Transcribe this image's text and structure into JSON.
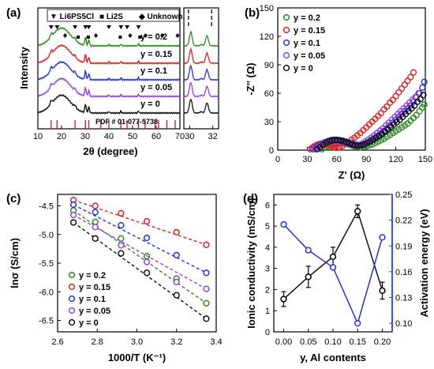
{
  "chart_data": [
    {
      "panel": "(a)",
      "type": "line",
      "xlabel": "2θ (degree)",
      "ylabel": "Intensity",
      "xticks_main": [
        "10",
        "20",
        "30",
        "40",
        "50",
        "60",
        "70"
      ],
      "xticks_inset": [
        "30",
        "32"
      ],
      "xlim": [
        10,
        70
      ],
      "xlim_inset": [
        29.5,
        32.5
      ],
      "legend": [
        "▼ Li6PS5Cl",
        "■ Li2S",
        "◆ Unknown"
      ],
      "pdf_label": "PDF # 01-077-5738",
      "series": [
        {
          "name": "y = 0.2",
          "color": "#2e8b1e"
        },
        {
          "name": "y = 0.15",
          "color": "#e32222"
        },
        {
          "name": "y = 0.1",
          "color": "#2233e6"
        },
        {
          "name": "y = 0.05",
          "color": "#9a3fe0"
        },
        {
          "name": "y = 0",
          "color": "#111111"
        }
      ],
      "li6ps5cl_peaks": [
        15.6,
        18.1,
        25.7,
        30.1,
        31.5,
        40.0,
        45.1,
        47.7,
        52.5
      ],
      "li2s_peaks": [
        27.0,
        31.3,
        44.8,
        53.1
      ],
      "unknown_peaks": [
        21.5,
        34.5,
        49.0,
        55.5,
        62.5,
        69.0
      ],
      "pdf_ticks": [
        15.6,
        18.1,
        25.7,
        30.1,
        31.5,
        36.6,
        40.0,
        45.1,
        47.7,
        52.5,
        55.3,
        59.5,
        61.0,
        64.5,
        68.0
      ]
    },
    {
      "panel": "(b)",
      "type": "scatter",
      "xlabel": "Z' (Ω)",
      "ylabel": "-Z'' (Ω)",
      "xlim": [
        0,
        150
      ],
      "ylim": [
        0,
        150
      ],
      "xticks": [
        0,
        30,
        60,
        90,
        120,
        150
      ],
      "yticks": [
        0,
        30,
        60,
        90,
        120,
        150
      ],
      "legend_position": "top-left",
      "series": [
        {
          "name": "y = 0.2",
          "color": "#2e8b1e",
          "x": [
            45,
            48,
            51,
            54,
            57,
            60,
            63,
            66,
            69,
            72,
            75,
            78,
            81,
            84,
            87,
            90,
            93,
            96,
            99,
            102,
            105,
            108,
            111,
            114,
            117,
            120,
            123,
            126,
            129,
            132,
            135,
            138,
            141,
            144,
            147,
            149
          ],
          "y": [
            1,
            3,
            4,
            5,
            6,
            6.5,
            7,
            7,
            6.5,
            6,
            5,
            4,
            3.5,
            3,
            3.5,
            4,
            5,
            6,
            7.5,
            9,
            10.5,
            12,
            14,
            16,
            18,
            20,
            22,
            24,
            26,
            28,
            31,
            34,
            37,
            41,
            45,
            48
          ]
        },
        {
          "name": "y = 0.15",
          "color": "#e32222",
          "x": [
            33,
            35,
            37,
            39,
            41,
            43,
            45,
            47,
            49,
            51,
            53,
            55,
            57,
            59,
            61,
            63,
            66,
            69,
            72,
            75,
            78,
            81,
            84,
            87,
            90,
            93,
            96,
            99,
            102,
            105,
            108,
            111,
            114,
            117,
            120,
            123,
            126,
            129,
            132,
            135,
            138
          ],
          "y": [
            1,
            2.5,
            4,
            5,
            6,
            6.5,
            7,
            7,
            6.5,
            6,
            5,
            4,
            3,
            2.5,
            2.5,
            3,
            4.5,
            6.5,
            8.5,
            11,
            13,
            15.5,
            18,
            21,
            24,
            27,
            30,
            33,
            36,
            39,
            43,
            46,
            50,
            53,
            57,
            61,
            65,
            69,
            73,
            77,
            82
          ]
        },
        {
          "name": "y = 0.1",
          "color": "#2233e6",
          "x": [
            36,
            39,
            42,
            45,
            48,
            51,
            54,
            57,
            60,
            63,
            66,
            69,
            72,
            75,
            78,
            81,
            84,
            87,
            90,
            93,
            96,
            99,
            102,
            105,
            108,
            111,
            114,
            117,
            120,
            123,
            126,
            129,
            132,
            135,
            138,
            141,
            144,
            147,
            149
          ],
          "y": [
            1,
            3,
            5,
            7,
            8.5,
            9.5,
            10.5,
            11,
            11,
            10.5,
            10,
            9,
            8,
            7,
            6,
            5.5,
            5,
            6,
            7.5,
            9,
            11,
            13,
            15,
            17.5,
            20,
            23,
            26,
            29,
            32,
            35,
            38,
            41,
            44,
            47,
            51,
            56,
            60,
            66,
            72
          ]
        },
        {
          "name": "y = 0.05",
          "color": "#9a3fe0",
          "x": [
            38,
            41,
            44,
            47,
            50,
            53,
            56,
            59,
            62,
            65,
            68,
            71,
            74,
            77,
            80,
            83,
            86,
            89,
            92,
            95,
            98,
            101,
            104,
            107,
            110,
            113,
            116,
            119,
            122,
            125,
            128,
            131,
            134,
            137,
            140,
            143
          ],
          "y": [
            1,
            3,
            5,
            7,
            8,
            9,
            9.5,
            9.5,
            9,
            8.5,
            7.5,
            6.5,
            5.5,
            5,
            5,
            5.5,
            7,
            9,
            11,
            13,
            15.5,
            18,
            20.5,
            23,
            26,
            29,
            32,
            35,
            38,
            41,
            44,
            47,
            50,
            53,
            56,
            60
          ]
        },
        {
          "name": "y = 0",
          "color": "#111111",
          "x": [
            40,
            43,
            46,
            49,
            52,
            55,
            58,
            61,
            64,
            67,
            70,
            73,
            76,
            79,
            82,
            85,
            88,
            91,
            94,
            97,
            100,
            103,
            106,
            109,
            112,
            115,
            118,
            121,
            124,
            127,
            130,
            133,
            136,
            139,
            142,
            145,
            148
          ],
          "y": [
            1,
            3,
            5.5,
            7.5,
            9,
            10,
            10.5,
            10.5,
            10,
            9,
            8,
            7,
            6,
            5,
            4.5,
            5,
            6,
            7.5,
            9,
            11,
            13,
            15,
            17,
            19.5,
            22,
            24.5,
            27,
            29.5,
            32,
            35,
            38,
            41,
            44,
            47,
            51,
            54,
            58
          ]
        }
      ]
    },
    {
      "panel": "(c)",
      "type": "scatter",
      "xlabel": "1000/T (K⁻¹)",
      "ylabel": "lnσ (S/cm)",
      "xlim": [
        2.6,
        3.4
      ],
      "ylim": [
        -6.7,
        -4.3
      ],
      "xticks": [
        "2.6",
        "2.8",
        "3.0",
        "3.2",
        "3.4"
      ],
      "yticks": [
        "-4.5",
        "-5.0",
        "-5.5",
        "-6.0",
        "-6.5"
      ],
      "legend_position": "bottom-left",
      "x": [
        2.68,
        2.79,
        2.92,
        3.05,
        3.2,
        3.35
      ],
      "series": [
        {
          "name": "y = 0.2",
          "color": "#2e8b1e",
          "values": [
            -4.58,
            -4.78,
            -5.07,
            -5.38,
            -5.77,
            -6.2
          ]
        },
        {
          "name": "y = 0.15",
          "color": "#e32222",
          "values": [
            -4.4,
            -4.5,
            -4.63,
            -4.77,
            -4.96,
            -5.18
          ]
        },
        {
          "name": "y = 0.1",
          "color": "#2233e6",
          "values": [
            -4.48,
            -4.61,
            -4.84,
            -5.06,
            -5.36,
            -5.67
          ]
        },
        {
          "name": "y = 0.05",
          "color": "#9a3fe0",
          "values": [
            -4.66,
            -4.87,
            -5.19,
            -5.48,
            -5.83,
            -5.95
          ]
        },
        {
          "name": "y = 0",
          "color": "#111111",
          "values": [
            -4.79,
            -5.07,
            -5.33,
            -5.67,
            -6.06,
            -6.47
          ]
        }
      ]
    },
    {
      "panel": "(d)",
      "type": "line",
      "xlabel": "y, Al contents",
      "ylabel": "Ionic conductivity (mS/cm)",
      "ylabel_right": "Activation energy (eV)",
      "x": [
        0.0,
        0.05,
        0.1,
        0.15,
        0.2
      ],
      "xticks": [
        "0.00",
        "0.05",
        "0.10",
        "0.15",
        "0.20"
      ],
      "ylim": [
        0,
        6.5
      ],
      "yticks": [
        "0",
        "1",
        "2",
        "3",
        "4",
        "5",
        "6"
      ],
      "ylim_right": [
        0.09,
        0.25
      ],
      "yticks_right": [
        "0.10",
        "0.13",
        "0.16",
        "0.19",
        "0.22",
        "0.25"
      ],
      "series": [
        {
          "name": "Ionic conductivity",
          "axis": "left",
          "color": "#111111",
          "values": [
            1.55,
            2.6,
            3.55,
            5.7,
            1.95
          ],
          "errors": [
            0.35,
            0.5,
            0.45,
            0.3,
            0.4
          ]
        },
        {
          "name": "Activation energy",
          "axis": "right",
          "color": "#2233e6",
          "values": [
            0.215,
            0.185,
            0.165,
            0.1,
            0.2
          ]
        }
      ]
    }
  ]
}
